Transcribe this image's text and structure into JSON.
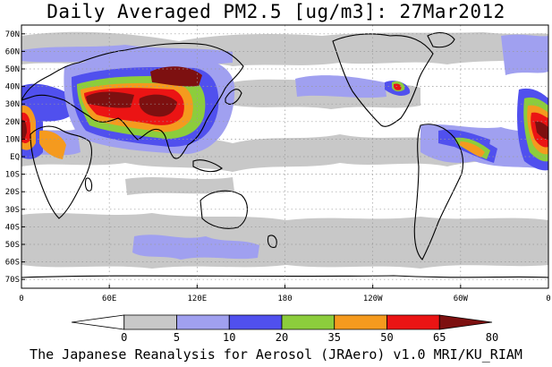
{
  "title": "Daily Averaged PM2.5 [ug/m3]: 27Mar2012",
  "footer": "The Japanese Reanalysis for Aerosol (JRAero) v1.0 MRI/KU_RIAM",
  "map": {
    "lon_range": [
      0,
      360
    ],
    "lat_range": [
      -75,
      75
    ],
    "grid": true,
    "lat_ticks": [
      {
        "value": 70,
        "label": "70N"
      },
      {
        "value": 60,
        "label": "60N"
      },
      {
        "value": 50,
        "label": "50N"
      },
      {
        "value": 40,
        "label": "40N"
      },
      {
        "value": 30,
        "label": "30N"
      },
      {
        "value": 20,
        "label": "20N"
      },
      {
        "value": 10,
        "label": "10N"
      },
      {
        "value": 0,
        "label": "EQ"
      },
      {
        "value": -10,
        "label": "10S"
      },
      {
        "value": -20,
        "label": "20S"
      },
      {
        "value": -30,
        "label": "30S"
      },
      {
        "value": -40,
        "label": "40S"
      },
      {
        "value": -50,
        "label": "50S"
      },
      {
        "value": -60,
        "label": "60S"
      },
      {
        "value": -70,
        "label": "70S"
      }
    ],
    "lon_ticks": [
      {
        "value": 0,
        "label": "0"
      },
      {
        "value": 60,
        "label": "60E"
      },
      {
        "value": 120,
        "label": "120E"
      },
      {
        "value": 180,
        "label": "180"
      },
      {
        "value": 240,
        "label": "120W"
      },
      {
        "value": 300,
        "label": "60W"
      },
      {
        "value": 360,
        "label": "0"
      }
    ]
  },
  "colorbar": {
    "unit": "ug/m3",
    "colors": [
      "#ffffff",
      "#c8c8c8",
      "#a0a0f0",
      "#5050ee",
      "#8ccd3c",
      "#f59a1e",
      "#eb1414",
      "#7d1010"
    ],
    "tick_labels": [
      "0",
      "5",
      "10",
      "20",
      "35",
      "50",
      "65",
      "80"
    ]
  }
}
